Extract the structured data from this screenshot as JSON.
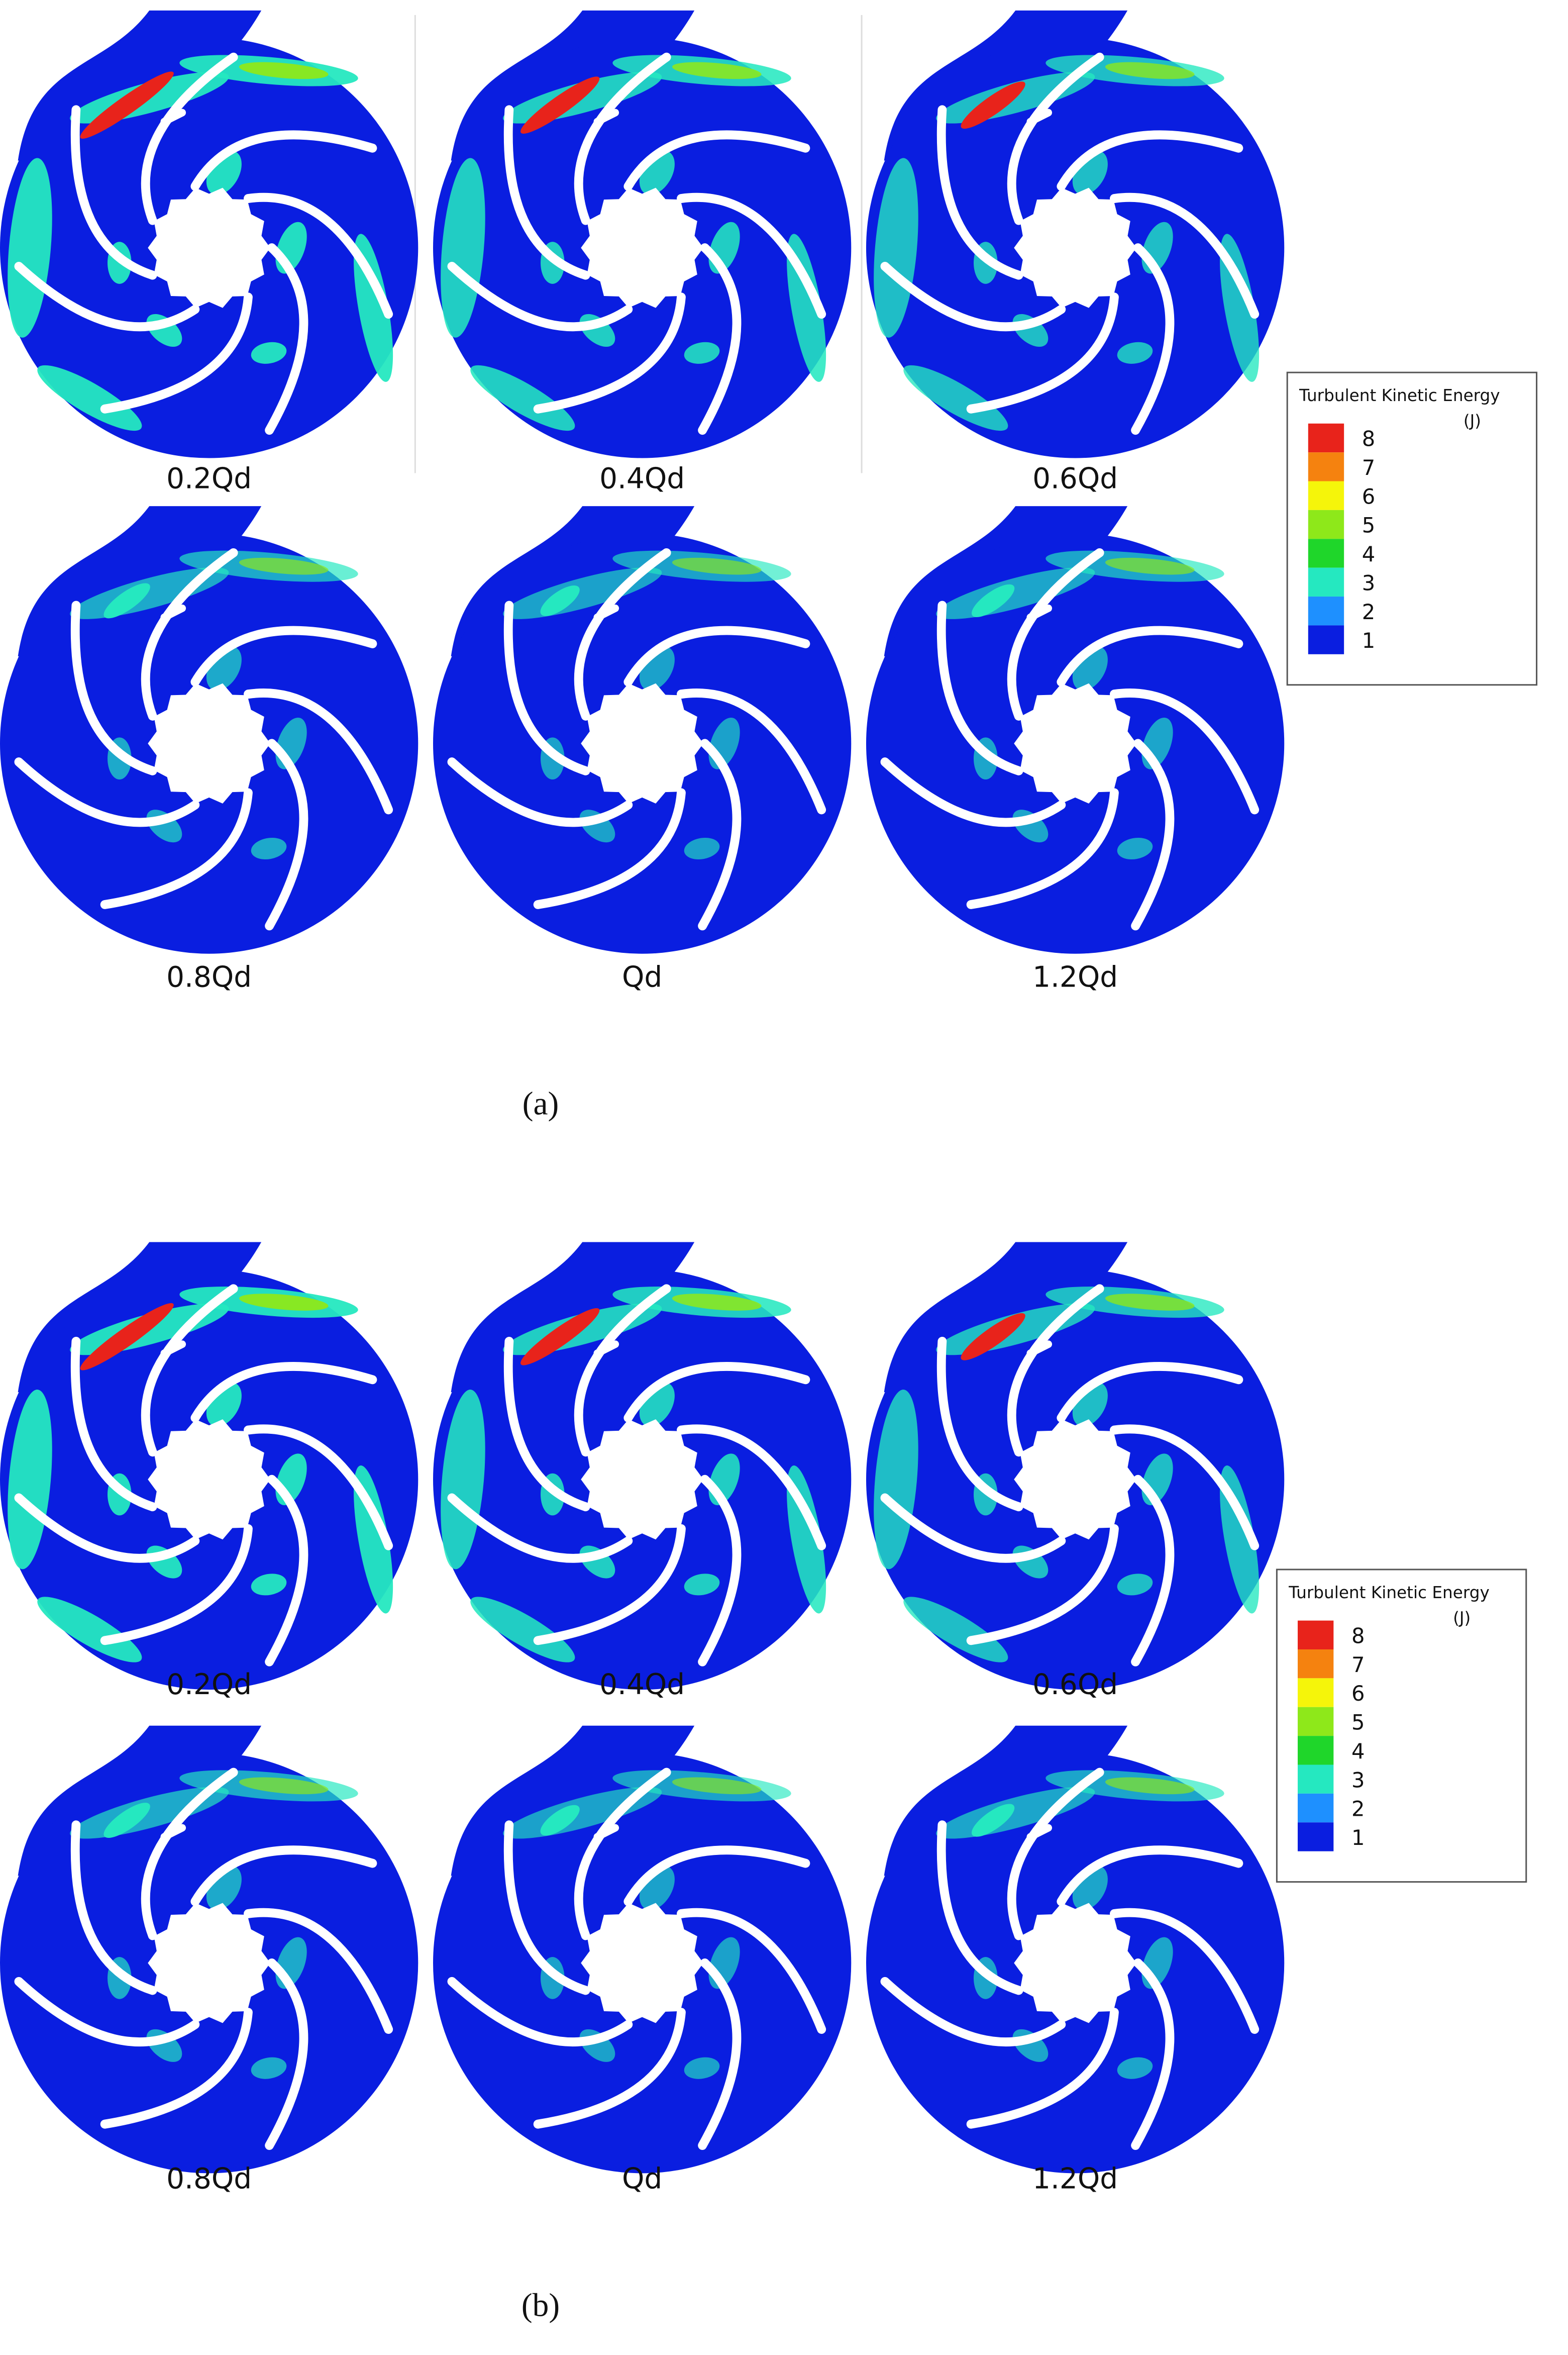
{
  "figures": [
    {
      "label": "(a)",
      "panels": [
        "0.2Qd",
        "0.4Qd",
        "0.6Qd",
        "0.8Qd",
        "Qd",
        "1.2Qd"
      ],
      "legend": {
        "title": "Turbulent Kinetic Energy",
        "unit": "(J)",
        "levels": [
          {
            "value": 8,
            "color": "#e8231b"
          },
          {
            "value": 7,
            "color": "#f5820f"
          },
          {
            "value": 6,
            "color": "#f5f50a"
          },
          {
            "value": 5,
            "color": "#8ee81a"
          },
          {
            "value": 4,
            "color": "#1fd62a"
          },
          {
            "value": 3,
            "color": "#25e8c0"
          },
          {
            "value": 2,
            "color": "#1e90ff"
          },
          {
            "value": 1,
            "color": "#0a1ee0"
          }
        ]
      }
    },
    {
      "label": "(b)",
      "panels": [
        "0.2Qd",
        "0.4Qd",
        "0.6Qd",
        "0.8Qd",
        "Qd",
        "1.2Qd"
      ],
      "legend": {
        "title": "Turbulent Kinetic Energy",
        "unit": "(J)",
        "levels": [
          {
            "value": 8,
            "color": "#e8231b"
          },
          {
            "value": 7,
            "color": "#f5820f"
          },
          {
            "value": 6,
            "color": "#f5f50a"
          },
          {
            "value": 5,
            "color": "#8ee81a"
          },
          {
            "value": 4,
            "color": "#1fd62a"
          },
          {
            "value": 3,
            "color": "#25e8c0"
          },
          {
            "value": 2,
            "color": "#1e90ff"
          },
          {
            "value": 1,
            "color": "#0a1ee0"
          }
        ]
      }
    }
  ]
}
